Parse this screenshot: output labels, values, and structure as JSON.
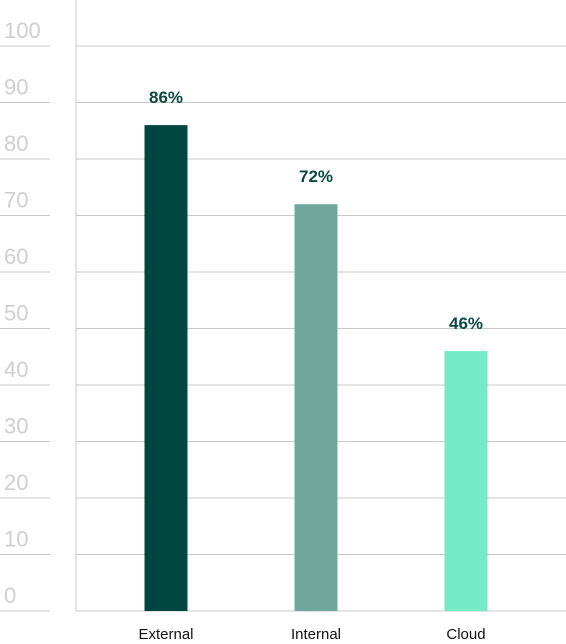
{
  "chart_data": {
    "type": "bar",
    "categories": [
      "External",
      "Internal",
      "Cloud"
    ],
    "values": [
      86,
      72,
      46
    ],
    "data_labels": [
      "86%",
      "72%",
      "46%"
    ],
    "ylim": [
      0,
      100
    ],
    "y_ticks": [
      0,
      10,
      20,
      30,
      40,
      50,
      60,
      70,
      80,
      90,
      100
    ],
    "grid": true,
    "colors": [
      "#004640",
      "#6fa89b",
      "#74ebc4"
    ]
  }
}
